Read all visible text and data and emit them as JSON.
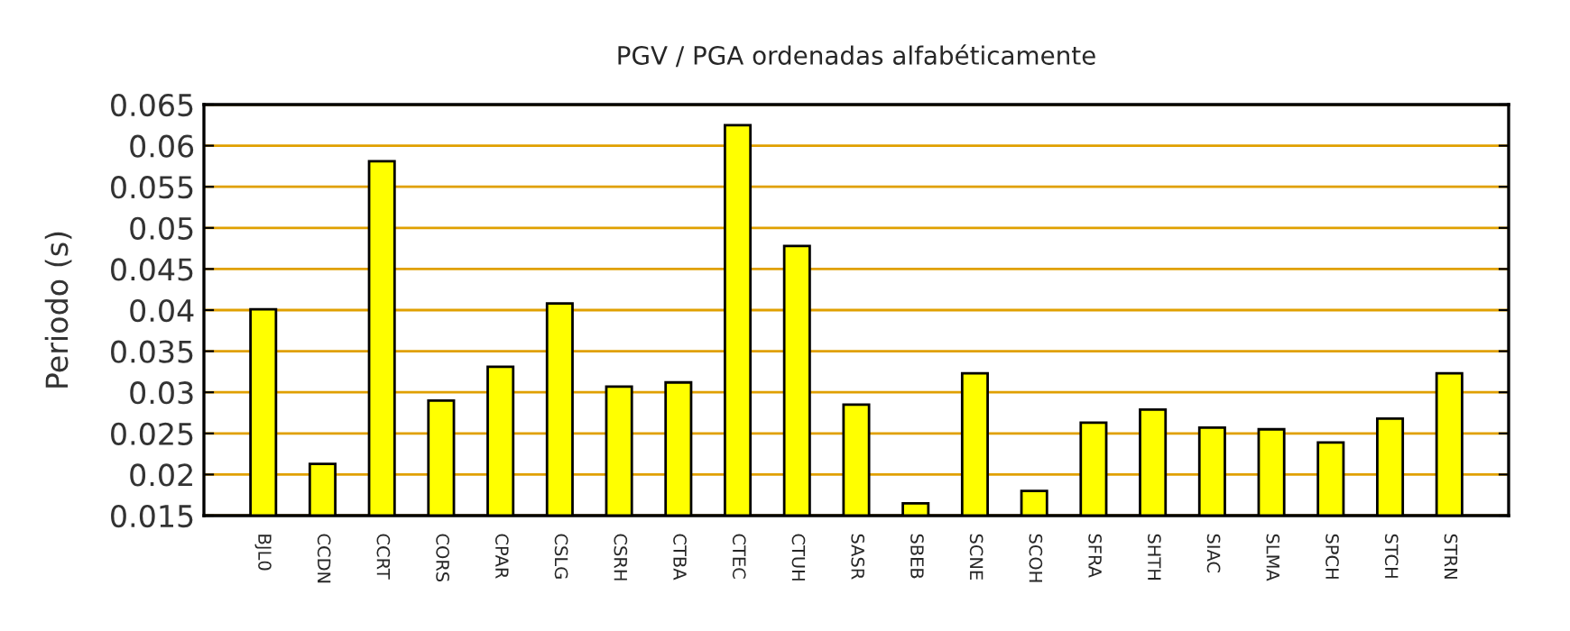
{
  "chart_data": {
    "type": "bar",
    "title": "PGV / PGA ordenadas alfabéticamente",
    "ylabel": "Periodo (s)",
    "categories": [
      "BJL0",
      "CCDN",
      "CCRT",
      "CORS",
      "CPAR",
      "CSLG",
      "CSRH",
      "CTBA",
      "CTEC",
      "CTUH",
      "SASR",
      "SBEB",
      "SCNE",
      "SCOH",
      "SFRA",
      "SHTH",
      "SIAC",
      "SLMA",
      "SPCH",
      "STCH",
      "STRN"
    ],
    "values": [
      0.0401,
      0.0213,
      0.0581,
      0.029,
      0.0331,
      0.0408,
      0.0307,
      0.0312,
      0.0625,
      0.0478,
      0.0285,
      0.0165,
      0.0323,
      0.018,
      0.0263,
      0.0279,
      0.0257,
      0.0255,
      0.0239,
      0.0268,
      0.0323
    ],
    "color": "#ffff00",
    "ylim": [
      0.015,
      0.065
    ],
    "yticks": [
      0.015,
      0.02,
      0.025,
      0.03,
      0.035,
      0.04,
      0.045,
      0.05,
      0.055,
      0.06,
      0.065
    ],
    "grid": "y",
    "legend": false
  }
}
